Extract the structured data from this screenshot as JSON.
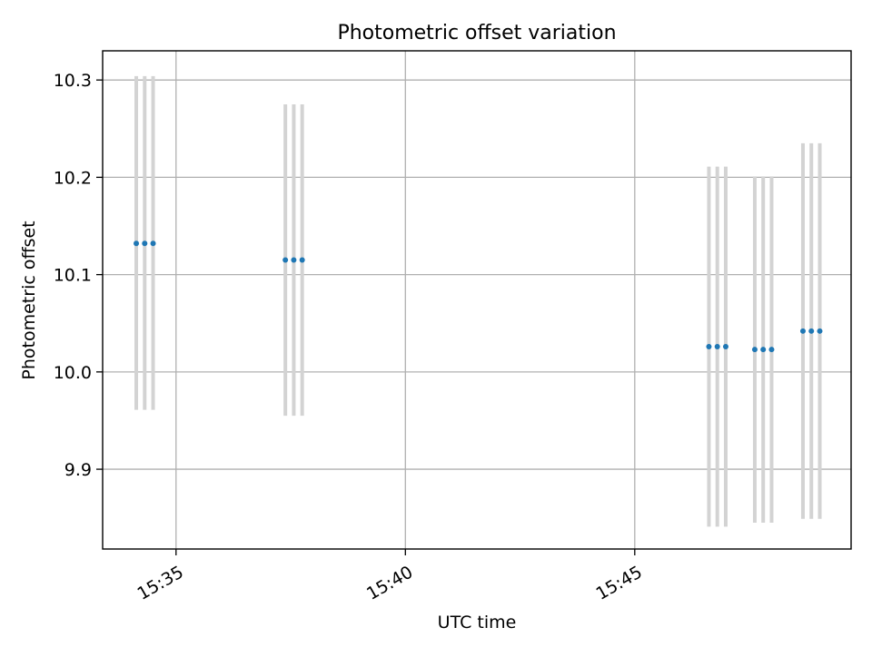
{
  "chart_data": {
    "type": "scatter",
    "title": "Photometric offset variation",
    "xlabel": "UTC time",
    "ylabel": "Photometric offset",
    "x_ticks": [
      "15:35",
      "15:40",
      "15:45"
    ],
    "x_tick_times": [
      "15:35",
      "15:40",
      "15:45"
    ],
    "y_ticks": [
      "9.9",
      "10.0",
      "10.1",
      "10.2",
      "10.3"
    ],
    "xlim": [
      "15:33:24",
      "15:49:43"
    ],
    "ylim": [
      9.818,
      10.33
    ],
    "grid": true,
    "colors": {
      "marker": "#1f77b4",
      "errorbar": "#d3d3d3",
      "grid": "#b0b0b0"
    },
    "series": [
      {
        "points": [
          {
            "x": "15:34:08",
            "y": 10.132,
            "y_low": 9.961,
            "y_high": 10.304
          },
          {
            "x": "15:34:19",
            "y": 10.132,
            "y_low": 9.961,
            "y_high": 10.304
          },
          {
            "x": "15:34:30",
            "y": 10.132,
            "y_low": 9.961,
            "y_high": 10.304
          },
          {
            "x": "15:37:23",
            "y": 10.115,
            "y_low": 9.955,
            "y_high": 10.275
          },
          {
            "x": "15:37:34",
            "y": 10.115,
            "y_low": 9.955,
            "y_high": 10.275
          },
          {
            "x": "15:37:45",
            "y": 10.115,
            "y_low": 9.955,
            "y_high": 10.275
          },
          {
            "x": "15:46:37",
            "y": 10.026,
            "y_low": 9.841,
            "y_high": 10.211
          },
          {
            "x": "15:46:48",
            "y": 10.026,
            "y_low": 9.841,
            "y_high": 10.211
          },
          {
            "x": "15:46:59",
            "y": 10.026,
            "y_low": 9.841,
            "y_high": 10.211
          },
          {
            "x": "15:47:37",
            "y": 10.023,
            "y_low": 9.845,
            "y_high": 10.201
          },
          {
            "x": "15:47:48",
            "y": 10.023,
            "y_low": 9.845,
            "y_high": 10.201
          },
          {
            "x": "15:47:59",
            "y": 10.023,
            "y_low": 9.845,
            "y_high": 10.201
          },
          {
            "x": "15:48:40",
            "y": 10.042,
            "y_low": 9.849,
            "y_high": 10.235
          },
          {
            "x": "15:48:51",
            "y": 10.042,
            "y_low": 9.849,
            "y_high": 10.235
          },
          {
            "x": "15:49:02",
            "y": 10.042,
            "y_low": 9.849,
            "y_high": 10.235
          }
        ]
      }
    ]
  }
}
